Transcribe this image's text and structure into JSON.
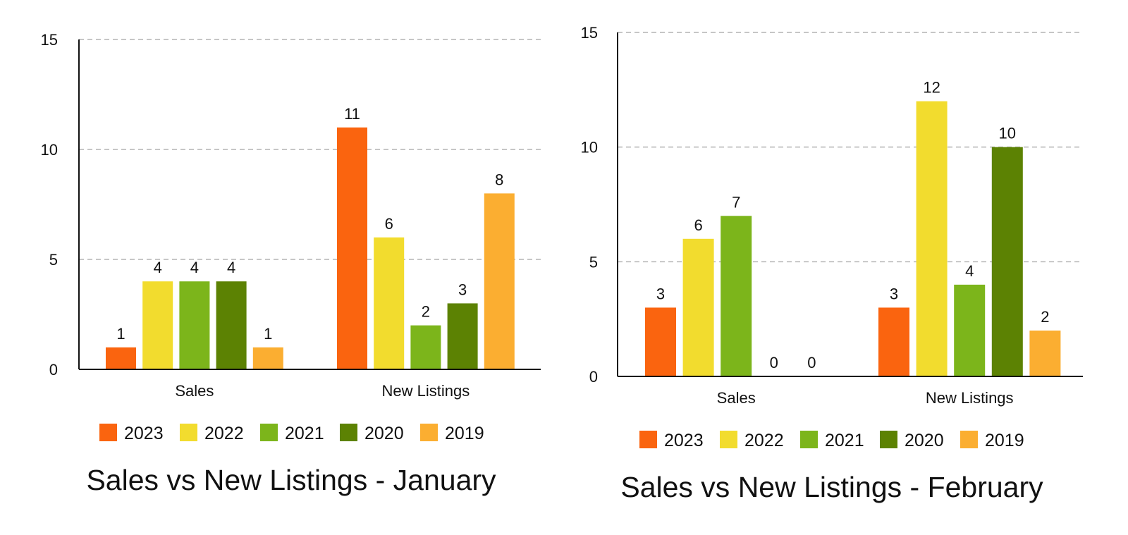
{
  "chart_data": [
    {
      "type": "bar",
      "title": "Sales vs New Listings - January",
      "categories": [
        "Sales",
        "New Listings"
      ],
      "series": [
        {
          "name": "2023",
          "color": "#fa640f",
          "values": [
            1,
            11
          ]
        },
        {
          "name": "2022",
          "color": "#f2dc2e",
          "values": [
            4,
            6
          ]
        },
        {
          "name": "2021",
          "color": "#7cb51b",
          "values": [
            4,
            2
          ]
        },
        {
          "name": "2020",
          "color": "#5c8203",
          "values": [
            4,
            3
          ]
        },
        {
          "name": "2019",
          "color": "#fbae31",
          "values": [
            1,
            8
          ]
        }
      ],
      "ylim": [
        0,
        15
      ],
      "yticks": [
        0,
        5,
        10,
        15
      ],
      "grid": true,
      "legend": "bottom",
      "data_labels": true
    },
    {
      "type": "bar",
      "title": "Sales vs New Listings - February",
      "categories": [
        "Sales",
        "New Listings"
      ],
      "series": [
        {
          "name": "2023",
          "color": "#fa640f",
          "values": [
            3,
            3
          ]
        },
        {
          "name": "2022",
          "color": "#f2dc2e",
          "values": [
            6,
            12
          ]
        },
        {
          "name": "2021",
          "color": "#7cb51b",
          "values": [
            7,
            4
          ]
        },
        {
          "name": "2020",
          "color": "#5c8203",
          "values": [
            0,
            10
          ]
        },
        {
          "name": "2019",
          "color": "#fbae31",
          "values": [
            0,
            2
          ]
        }
      ],
      "ylim": [
        0,
        15
      ],
      "yticks": [
        0,
        5,
        10,
        15
      ],
      "grid": true,
      "legend": "bottom",
      "data_labels": true
    }
  ]
}
